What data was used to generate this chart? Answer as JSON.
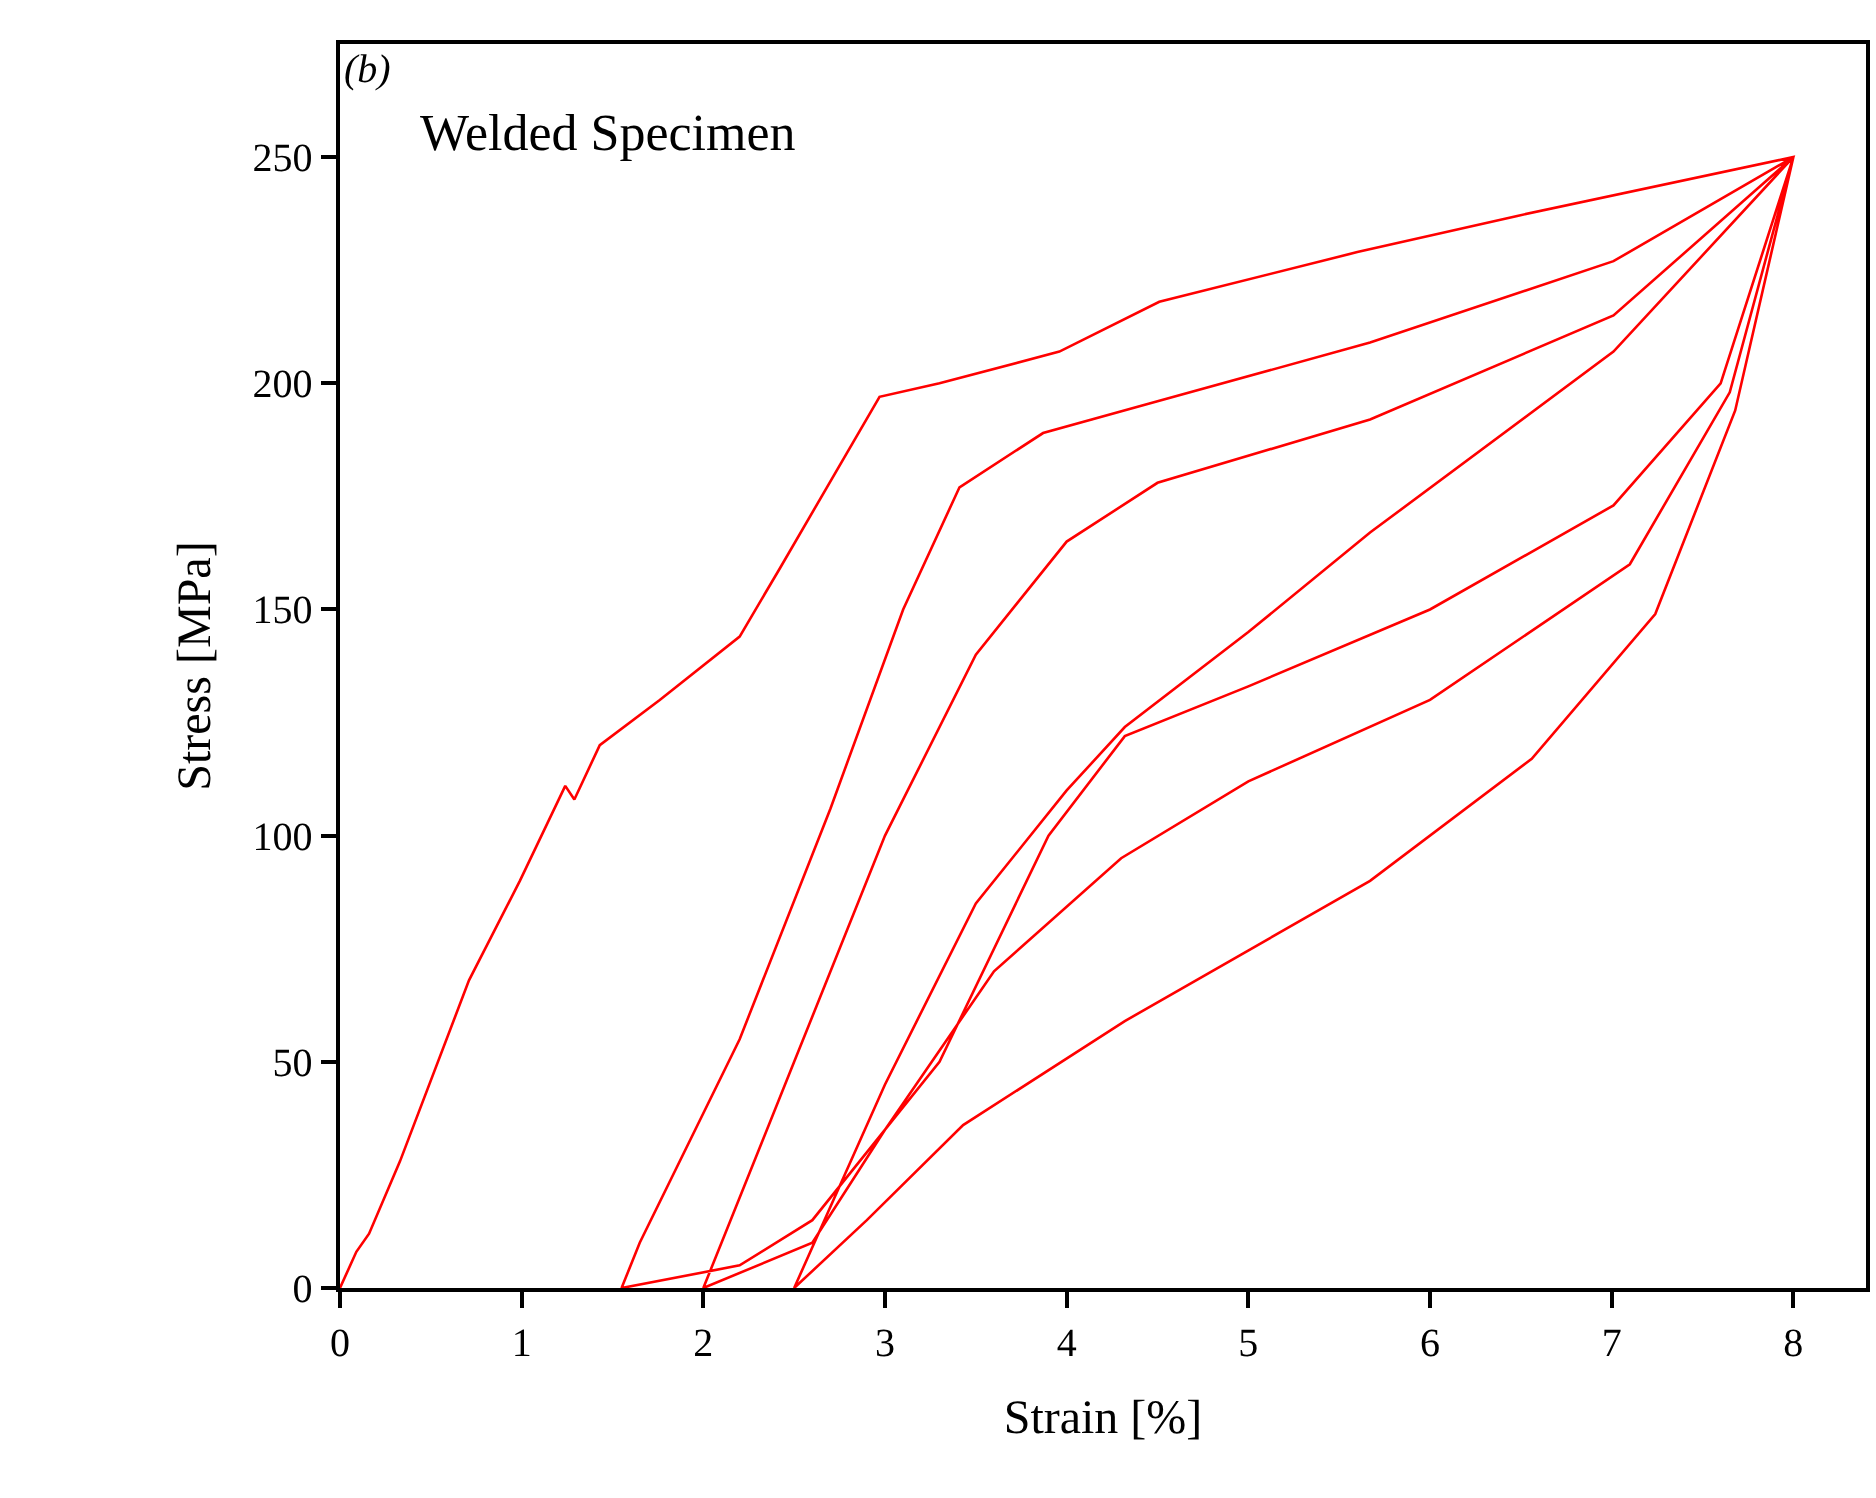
{
  "chart_data": {
    "type": "line",
    "xlabel": "Strain [%]",
    "ylabel": "Stress [MPa]",
    "annotations": [
      "(b)",
      "Welded Specimen"
    ],
    "xlim": [
      0,
      8.4
    ],
    "xticks": [
      0,
      1,
      2,
      3,
      4,
      5,
      6,
      7,
      8
    ],
    "ylim": [
      0,
      275
    ],
    "yticks": [
      0,
      50,
      100,
      150,
      200,
      250
    ],
    "marker": "none",
    "line_style": "solid",
    "series": [
      {
        "color": "#ff0000",
        "x": [
          0,
          0.09,
          0.16,
          0.33,
          0.71,
          0.99,
          1.24,
          1.29,
          1.43,
          1.76,
          2.2,
          2.42,
          2.97,
          3.3,
          3.96,
          4.51,
          5.6,
          6.48,
          8,
          7.6,
          7.01,
          6.0,
          5.0,
          4.32,
          3.9,
          3.3,
          2.6,
          2.2,
          1.55,
          1.65,
          2.2,
          2.7,
          3.1,
          3.41,
          3.87,
          4.5,
          5.67,
          7.01,
          8,
          7.65,
          7.1,
          6.0,
          5.0,
          4.3,
          3.6,
          3.0,
          2.6,
          2.0,
          2.5,
          3.0,
          3.5,
          4.0,
          4.5,
          5.67,
          7.01,
          8,
          7.68,
          7.24,
          6.56,
          5.67,
          4.32,
          3.43,
          2.9,
          2.5,
          3.0,
          3.5,
          4.0,
          4.32,
          5.0,
          5.67,
          7.01,
          8
        ],
        "values": [
          0,
          8,
          12,
          28,
          68,
          90,
          111,
          108,
          120,
          130,
          144,
          159,
          197,
          200,
          207,
          218,
          229,
          237,
          250,
          200,
          173,
          150,
          133,
          122,
          100,
          50,
          15,
          5,
          0,
          10,
          55,
          106,
          150,
          177,
          189,
          196,
          209,
          227,
          250,
          198,
          160,
          130,
          112,
          95,
          70,
          35,
          10,
          0,
          50,
          100,
          140,
          165,
          178,
          192,
          215,
          250,
          194,
          149,
          117,
          90,
          59,
          36,
          15,
          0,
          45,
          85,
          110,
          124,
          145,
          167,
          207,
          250
        ]
      }
    ]
  }
}
